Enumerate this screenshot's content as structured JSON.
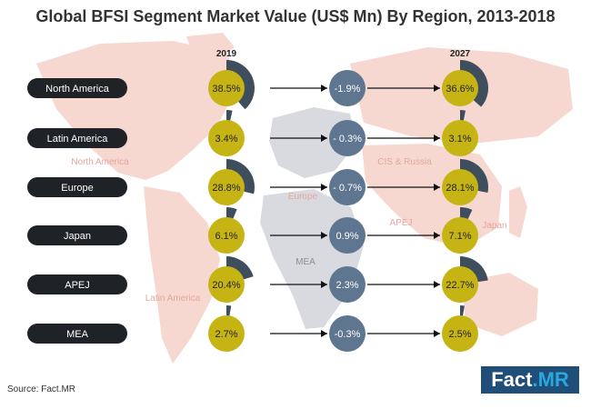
{
  "title": "Global BFSI Segment Market Value (US$ Mn) By Region, 2013-2018",
  "source": "Source: Fact.MR",
  "brand": {
    "part1": "Fact",
    "part2": ".MR"
  },
  "colors": {
    "share_circle": "#c5b414",
    "share_arc": "#3f4e5d",
    "change_circle": "#5f7690",
    "label_pill": "#1f2226",
    "map": "#f6d8d1",
    "map_muted": "#d8dadf",
    "map_label": "#e3a79c",
    "arrow": "#111111"
  },
  "map_labels": [
    "North America",
    "Latin America",
    "Europe",
    "MEA",
    "CIS & Russia",
    "APEJ",
    "Japan"
  ],
  "chart_data": {
    "type": "table",
    "title": "Global BFSI Segment Market Value (US$ Mn) By Region, 2013-2018",
    "columns": [
      "2019",
      "2027"
    ],
    "unit": "%",
    "rows": [
      {
        "region": "North America",
        "share_2019": 38.5,
        "label_2019": "38.5%",
        "change": "-1.9%",
        "share_2027": 36.6,
        "label_2027": "36.6%"
      },
      {
        "region": "Latin America",
        "share_2019": 3.4,
        "label_2019": "3.4%",
        "change": "- 0.3%",
        "share_2027": 3.1,
        "label_2027": "3.1%"
      },
      {
        "region": "Europe",
        "share_2019": 28.8,
        "label_2019": "28.8%",
        "change": "- 0.7%",
        "share_2027": 28.1,
        "label_2027": "28.1%"
      },
      {
        "region": "Japan",
        "share_2019": 6.1,
        "label_2019": "6.1%",
        "change": "0.9%",
        "share_2027": 7.1,
        "label_2027": "7.1%"
      },
      {
        "region": "APEJ",
        "share_2019": 20.4,
        "label_2019": "20.4%",
        "change": "2.3%",
        "share_2027": 22.7,
        "label_2027": "22.7%"
      },
      {
        "region": "MEA",
        "share_2019": 2.7,
        "label_2019": "2.7%",
        "change": "-0.3%",
        "share_2027": 2.5,
        "label_2027": "2.5%"
      }
    ]
  }
}
